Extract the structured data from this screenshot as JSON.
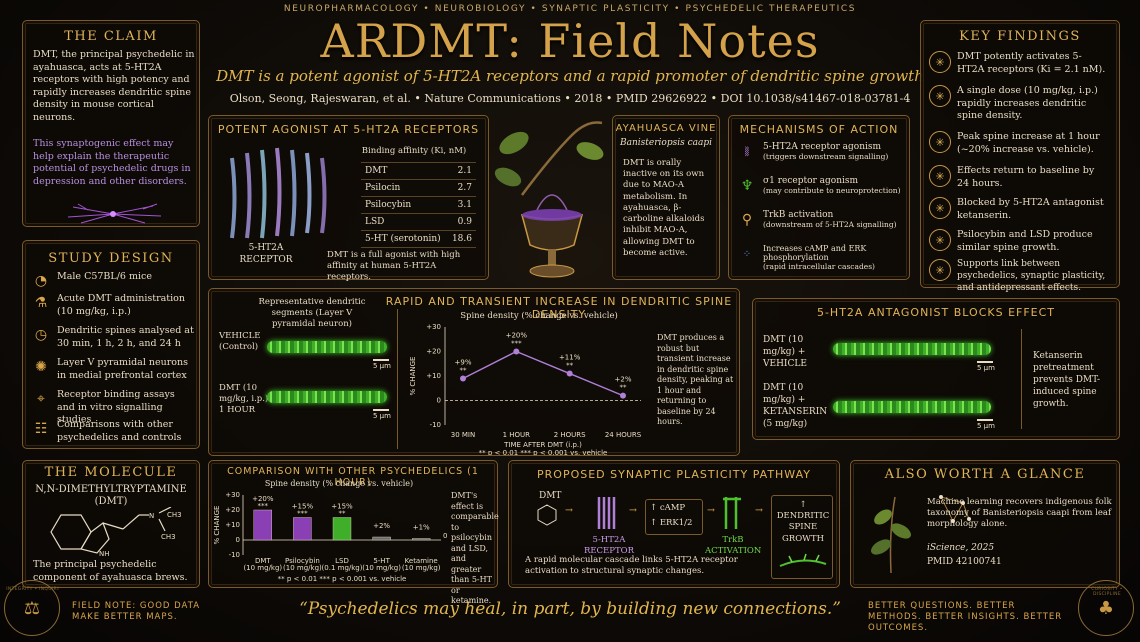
{
  "header": {
    "topline": "NEUROPHARMACOLOGY • NEUROBIOLOGY • SYNAPTIC PLASTICITY • PSYCHEDELIC THERAPEUTICS",
    "title": "ARDMT: Field Notes",
    "subtitle": "DMT is a potent agonist of 5-HT2A receptors and a rapid promoter of dendritic spine growth",
    "citation": "Olson, Seong, Rajeswaran, et al.  •  Nature Communications  •  2018  •  PMID 29626922  •  DOI 10.1038/s41467-018-03781-4"
  },
  "claim": {
    "title": "THE CLAIM",
    "body": "DMT, the principal psychedelic in ayahuasca, acts at 5-HT2A receptors with high potency and rapidly increases dendritic spine density in mouse cortical neurons.",
    "body2": "This synaptogenic effect may help explain the therapeutic potential of psychedelic drugs in depression and other disorders."
  },
  "study_design": {
    "title": "STUDY DESIGN",
    "items": [
      {
        "icon": "mouse-icon",
        "glyph": "◔",
        "text": "Male C57BL/6 mice"
      },
      {
        "icon": "flask-icon",
        "glyph": "⚗",
        "text": "Acute DMT administration (10 mg/kg, i.p.)"
      },
      {
        "icon": "clock-icon",
        "glyph": "◷",
        "text": "Dendritic spines analysed at 30 min, 1 h, 2 h, and 24 h"
      },
      {
        "icon": "neuron-icon",
        "glyph": "✺",
        "text": "Layer V pyramidal neurons in medial prefrontal cortex"
      },
      {
        "icon": "microscope-icon",
        "glyph": "⌖",
        "text": "Receptor binding assays and in vitro signalling studies"
      },
      {
        "icon": "chart-icon",
        "glyph": "☷",
        "text": "Comparisons with other psychedelics and controls"
      }
    ]
  },
  "molecule": {
    "title": "THE MOLECULE",
    "name": "N,N-DIMETHYLTRYPTAMINE",
    "abbr": "(DMT)",
    "caption": "The principal psychedelic component of ayahuasca brews.",
    "atom_n": "N",
    "atom_h": "H",
    "atom_ch3a": "CH3",
    "atom_ch3b": "CH3"
  },
  "agonist": {
    "title": "POTENT AGONIST AT 5-HT2A RECEPTORS",
    "receptor_label": "5-HT2A RECEPTOR",
    "table_header": "Binding affinity (Ki, nM)",
    "rows": [
      {
        "compound": "DMT",
        "value": "2.1"
      },
      {
        "compound": "Psilocin",
        "value": "2.7"
      },
      {
        "compound": "Psilocybin",
        "value": "3.1"
      },
      {
        "compound": "LSD",
        "value": "0.9"
      },
      {
        "compound": "5-HT (serotonin)",
        "value": "18.6"
      }
    ],
    "note": "DMT is a full agonist with high affinity at human 5-HT2A receptors."
  },
  "ayahuasca": {
    "title": "AYAHUASCA VINE",
    "species": "Banisteriopsis caapi",
    "body": "DMT is orally inactive on its own due to MAO-A metabolism. In ayahuasca, β-carboline alkaloids inhibit MAO-A, allowing DMT to become active."
  },
  "mechanisms": {
    "title": "MECHANISMS OF ACTION",
    "items": [
      {
        "icon": "receptor-icon",
        "main": "5-HT2A receptor agonism",
        "sub": "(triggers downstream signalling)"
      },
      {
        "icon": "sigma-receptor-icon",
        "main": "σ1 receptor agonism",
        "sub": "(may contribute to neuroprotection)"
      },
      {
        "icon": "trkb-icon",
        "main": "TrkB activation",
        "sub": "(downstream of 5-HT2A signalling)"
      },
      {
        "icon": "dots-icon",
        "main": "Increases cAMP and ERK phosphorylation",
        "sub": "(rapid intracellular cascades)"
      }
    ]
  },
  "key_findings": {
    "title": "KEY FINDINGS",
    "items": [
      "DMT potently activates 5-HT2A receptors (Ki = 2.1 nM).",
      "A single dose (10 mg/kg, i.p.) rapidly increases dendritic spine density.",
      "Peak spine increase at 1 hour (~20% increase vs. vehicle).",
      "Effects return to baseline by 24 hours.",
      "Blocked by 5-HT2A antagonist ketanserin.",
      "Psilocybin and LSD produce similar spine growth.",
      "Supports link between psychedelics, synaptic plasticity, and antidepressant effects."
    ]
  },
  "spine": {
    "title": "RAPID AND TRANSIENT INCREASE IN DENDRITIC SPINE DENSITY",
    "segments_label": "Representative dendritic segments (Layer V pyramidal neuron)",
    "vehicle_label": "VEHICLE (Control)",
    "dmt_label": "DMT (10 mg/kg, i.p.) 1 HOUR",
    "scale": "5 μm",
    "chart_title": "Spine density (% change vs. vehicle)",
    "ylabel": "% CHANGE",
    "xlabel": "TIME AFTER DMT (i.p.)",
    "footnote": "** p < 0.01     *** p < 0.001 vs. vehicle",
    "summary": "DMT produces a robust but transient increase in dendritic spine density, peaking at 1 hour and returning to baseline by 24 hours."
  },
  "antagonist": {
    "title": "5-HT2A ANTAGONIST BLOCKS EFFECT",
    "row1": "DMT (10 mg/kg) + VEHICLE",
    "row2": "DMT (10 mg/kg) + KETANSERIN (5 mg/kg)",
    "scale": "5 μm",
    "note": "Ketanserin pretreatment prevents DMT-induced spine growth."
  },
  "comparison": {
    "title": "COMPARISON WITH OTHER PSYCHEDELICS (1 HOUR)",
    "chart_title": "Spine density (% change vs. vehicle)",
    "ylabel": "% CHANGE",
    "footnote": "** p < 0.01     *** p < 0.001 vs. vehicle",
    "note": "DMT's effect is comparable to psilocybin and LSD, and greater than 5-HT or ketamine."
  },
  "pathway": {
    "title": "PROPOSED SYNAPTIC PLASTICITY PATHWAY",
    "dmt": "DMT",
    "receptor": "5-HT2A RECEPTOR",
    "camp": "↑ cAMP",
    "erk": "↑ ERK1/2",
    "trkb": "TrkB ACTIVATION",
    "outcome": "↑ DENDRITIC SPINE GROWTH",
    "caption": "A rapid molecular cascade links 5-HT2A receptor activation to structural synaptic changes."
  },
  "glance": {
    "title": "ALSO WORTH A GLANCE",
    "body": "Machine learning recovers indigenous folk taxonomy of Banisteriopsis caapi from leaf morphology alone.",
    "journal": "iScience, 2025",
    "pmid": "PMID 42100741"
  },
  "footer": {
    "left": "FIELD NOTE: GOOD DATA MAKE BETTER MAPS.",
    "quote": "“Psychedelics may heal, in part, by building new connections.”",
    "right": "BETTER QUESTIONS. BETTER METHODS. BETTER INSIGHTS. BETTER OUTCOMES.",
    "seal_left": "INTEGRITY • INQUIRY",
    "seal_right": "CURIOSITY • DISCIPLINE"
  },
  "chart_data": [
    {
      "type": "line",
      "title": "Spine density (% change vs. vehicle)",
      "xlabel": "TIME AFTER DMT (i.p.)",
      "ylabel": "% CHANGE",
      "categories": [
        "30 MIN",
        "1 HOUR",
        "2 HOURS",
        "24 HOURS"
      ],
      "values": [
        9,
        20,
        11,
        2
      ],
      "value_labels": [
        "+9%",
        "+20%",
        "+11%",
        "+2%"
      ],
      "significance": [
        "**",
        "***",
        "**",
        "**"
      ],
      "ylim": [
        -10,
        30
      ],
      "yticks": [
        "-10",
        "0",
        "+10",
        "+20",
        "+30"
      ],
      "colors": {
        "line": "#b07fd8"
      }
    },
    {
      "type": "bar",
      "title": "Spine density (% change vs. vehicle)",
      "ylabel": "% CHANGE",
      "categories": [
        "DMT",
        "Psilocybin",
        "LSD",
        "5-HT",
        "Ketamine"
      ],
      "doses": [
        "(10 mg/kg)",
        "(10 mg/kg)",
        "(0.1 mg/kg)",
        "(10 mg/kg)",
        "(10 mg/kg)"
      ],
      "values": [
        20,
        15,
        15,
        2,
        1
      ],
      "value_labels": [
        "+20%",
        "+15%",
        "+15%",
        "+2%",
        "+1%"
      ],
      "significance": [
        "***",
        "***",
        "**",
        "",
        ""
      ],
      "ylim": [
        -10,
        30
      ],
      "yticks": [
        "-10",
        "0",
        "+10",
        "+20",
        "+30"
      ],
      "extra_label": "0%",
      "colors": {
        "DMT": "#8a3fb5",
        "Psilocybin": "#8a3fb5",
        "LSD": "#3fae28",
        "5-HT": "#6b6b6b",
        "Ketamine": "#6b6b6b"
      }
    }
  ]
}
